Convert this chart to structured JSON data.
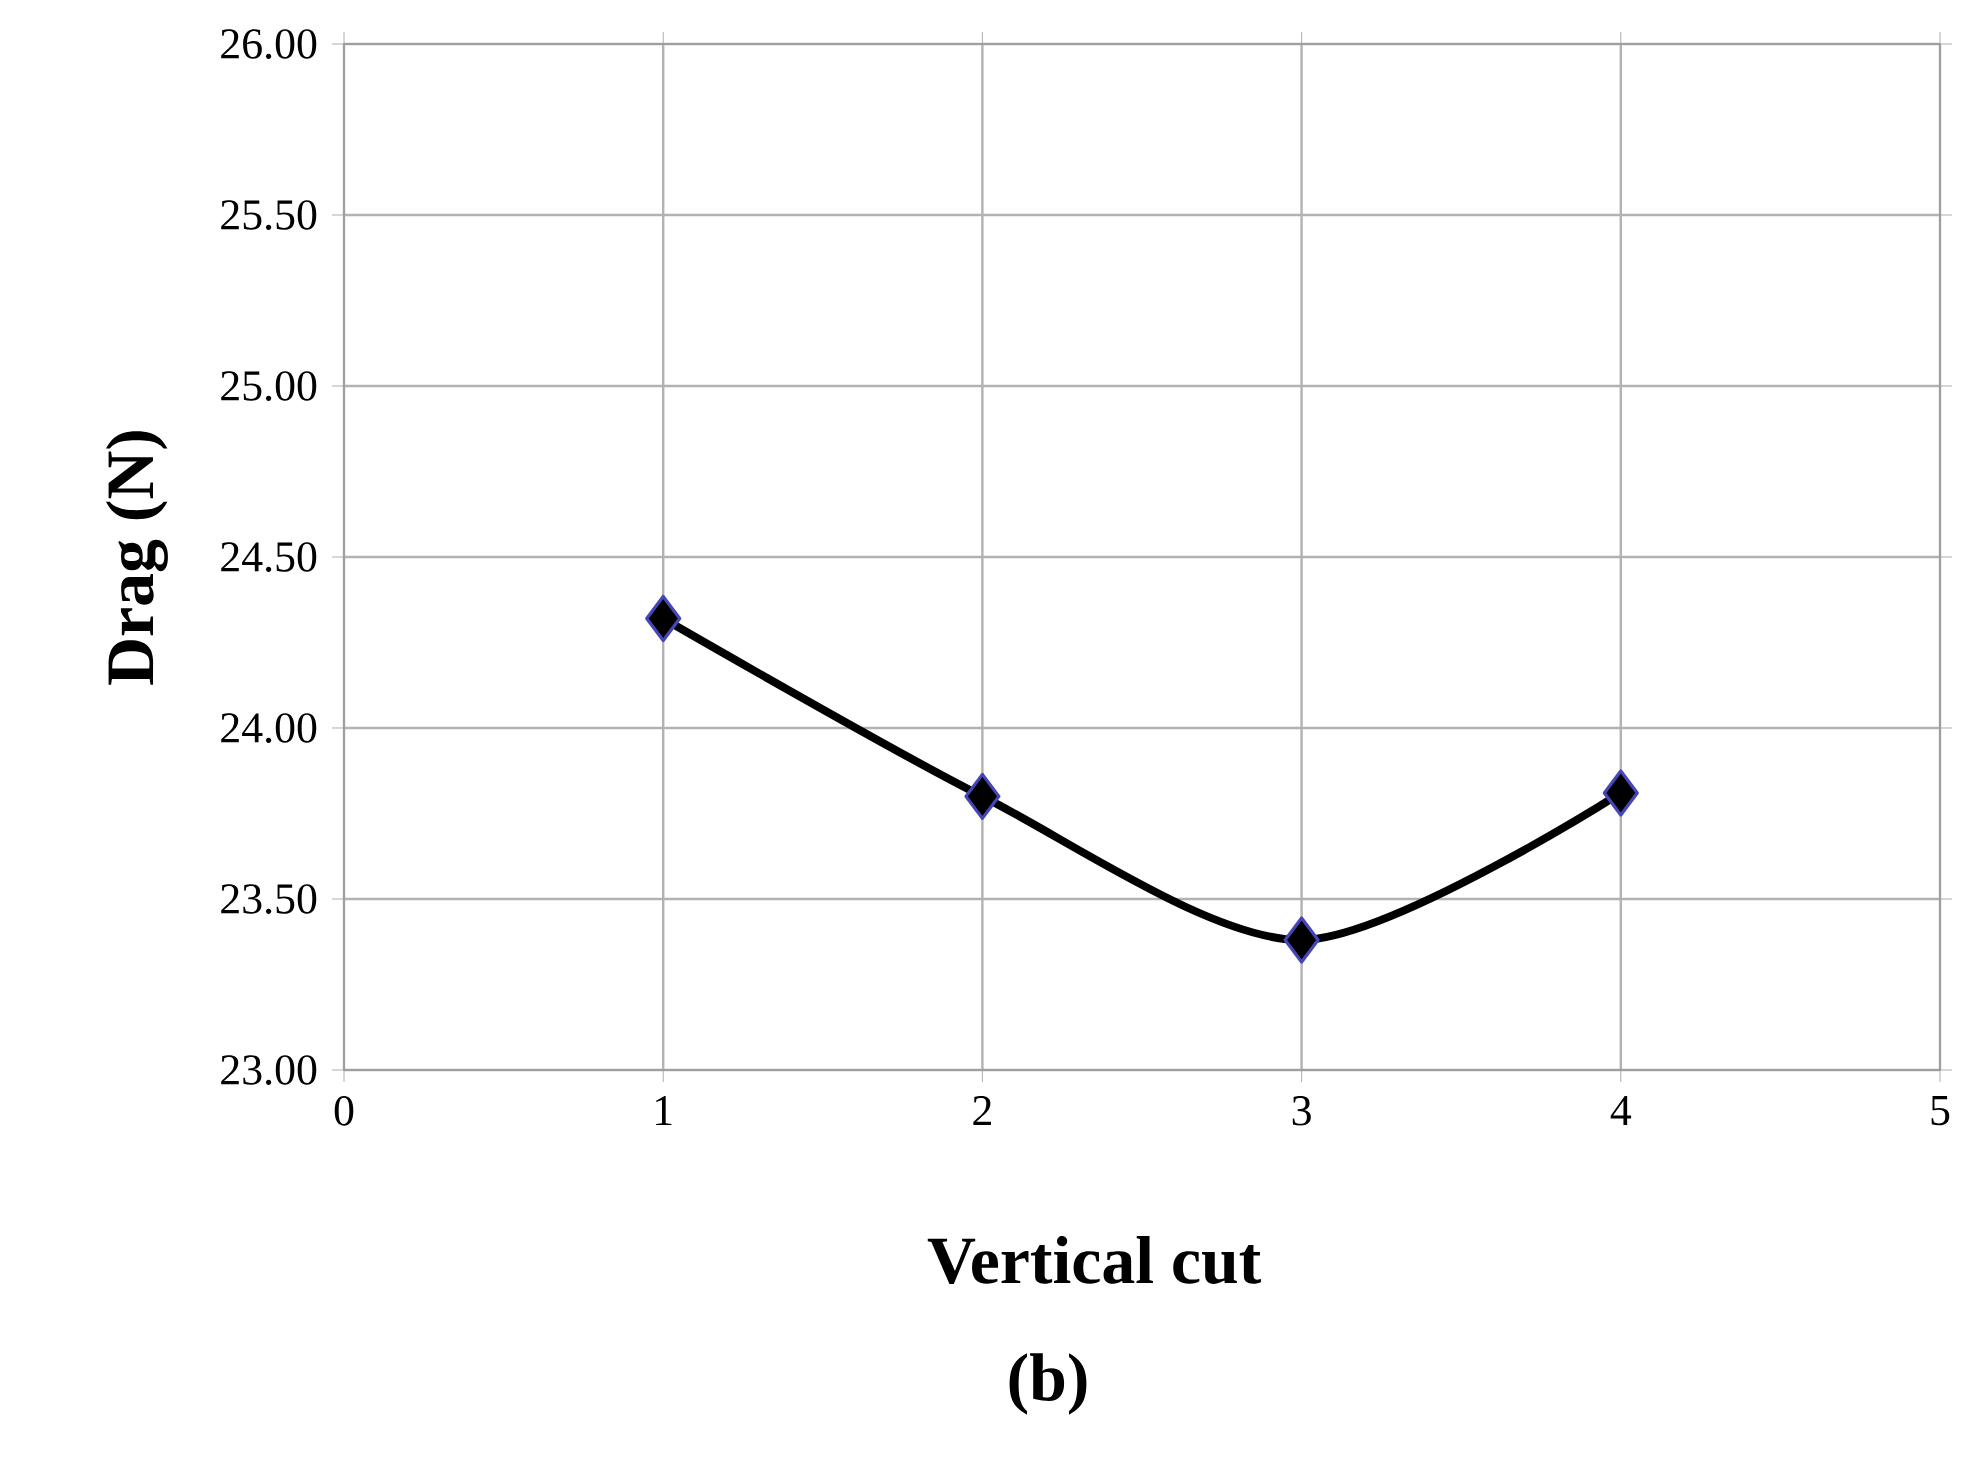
{
  "chart_data": {
    "type": "line",
    "xlabel": "Vertical cut",
    "ylabel": "Drag (N)",
    "x": [
      1,
      2,
      3,
      4
    ],
    "series": [
      {
        "color": "#000000",
        "values": [
          24.32,
          23.8,
          23.38,
          23.81
        ]
      }
    ],
    "xlim": [
      0,
      5
    ],
    "xticks": [
      0,
      1,
      2,
      3,
      4,
      5
    ],
    "ylim": [
      23,
      26
    ],
    "yticks": [
      {
        "value": 23,
        "label": "23.00"
      },
      {
        "value": 23.5,
        "label": "23.50"
      },
      {
        "value": 24,
        "label": "24.00"
      },
      {
        "value": 24.5,
        "label": "24.50"
      },
      {
        "value": 25,
        "label": "25.00"
      },
      {
        "value": 25.5,
        "label": "25.50"
      },
      {
        "value": 26,
        "label": "26.00"
      }
    ],
    "grid": true,
    "marker": "diamond",
    "line_style": "solid",
    "annotations": [
      "(b)"
    ]
  }
}
